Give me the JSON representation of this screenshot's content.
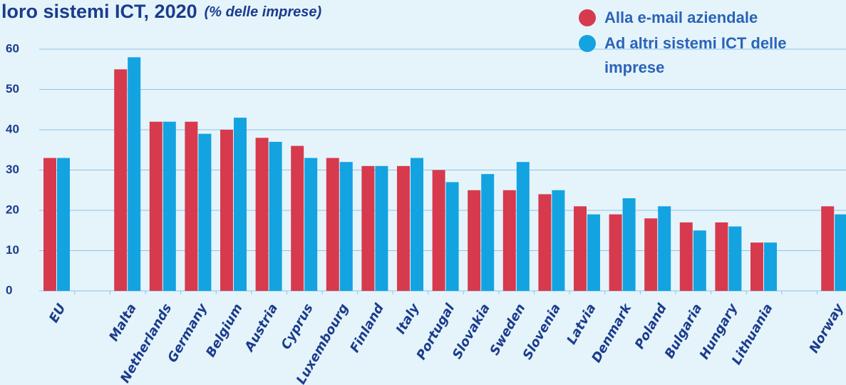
{
  "chart_data": {
    "type": "bar",
    "title": "loro sistemi ICT, 2020",
    "subtitle": "(% delle imprese)",
    "categories": [
      "EU",
      null,
      "Malta",
      "Netherlands",
      "Germany",
      "Belgium",
      "Austria",
      "Cyprus",
      "Luxembourg",
      "Finland",
      "Italy",
      "Portugal",
      "Slovakia",
      "Sweden",
      "Slovenia",
      "Latvia",
      "Denmark",
      "Poland",
      "Bulgaria",
      "Hungary",
      "Lithuania",
      null,
      "Norway"
    ],
    "series": [
      {
        "name": "Alla e-mail aziendale",
        "color": "#d73a4d",
        "values": [
          33,
          null,
          55,
          42,
          42,
          40,
          38,
          36,
          33,
          31,
          31,
          30,
          25,
          25,
          24,
          21,
          19,
          18,
          17,
          17,
          12,
          null,
          21
        ]
      },
      {
        "name": "Ad altri sistemi ICT delle imprese",
        "color": "#13a3e0",
        "values": [
          33,
          null,
          58,
          42,
          39,
          43,
          37,
          33,
          32,
          31,
          33,
          27,
          29,
          32,
          25,
          19,
          23,
          21,
          15,
          16,
          12,
          null,
          19
        ]
      }
    ],
    "ylim": [
      0,
      60
    ],
    "yticks": [
      0,
      10,
      20,
      30,
      40,
      50,
      60
    ],
    "grid": true,
    "legend": "top-right"
  }
}
